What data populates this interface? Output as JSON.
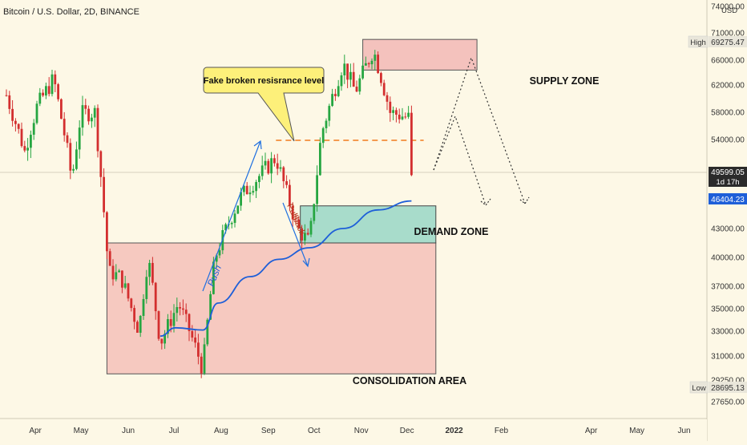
{
  "header": {
    "symbol_title": "Bitcoin / U.S. Dollar, 2D, BINANCE"
  },
  "currency": "USD",
  "price_axis": {
    "labels": [
      "74000.00",
      "71000.00",
      "66000.00",
      "62000.00",
      "58000.00",
      "54000.00",
      "43000.00",
      "40000.00",
      "37000.00",
      "35000.00",
      "33000.00",
      "31000.00",
      "29250.00",
      "27650.00"
    ],
    "high_label": "High",
    "high_value": "69275.47",
    "low_label": "Low",
    "low_value": "28695.13",
    "last_price": "49599.05",
    "countdown": "1d 17h",
    "ma_value": "46404.23"
  },
  "time_axis": {
    "labels": [
      "Apr",
      "May",
      "Jun",
      "Jul",
      "Aug",
      "Sep",
      "Oct",
      "Nov",
      "Dec",
      "2022",
      "Feb",
      "Apr",
      "May",
      "Jun"
    ]
  },
  "annotations": {
    "callout": "Fake broken resisrance level",
    "supply_zone": "SUPPLY ZONE",
    "demand_zone": "DEMAND ZONE",
    "consolidation": "CONSOLIDATION AREA",
    "push": "Push",
    "pullback": "Pullback"
  },
  "colors": {
    "background": "#fdf8e6",
    "up_candle": "#26a641",
    "down_candle": "#d32f2f",
    "ma_line": "#1e5fd8",
    "supply_fill": "#f4c2bd",
    "demand_fill": "#a8dccb",
    "consolidation_fill": "#f6c9c0",
    "callout_fill": "#fdf07a",
    "resistance_line": "#f27a1d"
  },
  "chart_data": {
    "type": "candlestick",
    "title": "Bitcoin / U.S. Dollar, 2D, BINANCE",
    "y_unit": "USD",
    "ylim": [
      26500,
      76000
    ],
    "x_range": [
      "2021-03-13",
      "2022-06-08"
    ],
    "grid": false,
    "ohlc_anchors": [
      {
        "date": "2021-03-13",
        "close": 60500
      },
      {
        "date": "2021-03-25",
        "close": 52500
      },
      {
        "date": "2021-04-02",
        "close": 58800
      },
      {
        "date": "2021-04-13",
        "close": 63000
      },
      {
        "date": "2021-04-25",
        "close": 49000
      },
      {
        "date": "2021-05-01",
        "close": 57800
      },
      {
        "date": "2021-05-10",
        "close": 58000
      },
      {
        "date": "2021-05-14",
        "close": 49500
      },
      {
        "date": "2021-05-19",
        "close": 38500
      },
      {
        "date": "2021-05-27",
        "close": 38000
      },
      {
        "date": "2021-06-08",
        "close": 33000
      },
      {
        "date": "2021-06-14",
        "close": 40000
      },
      {
        "date": "2021-06-22",
        "close": 32000
      },
      {
        "date": "2021-07-04",
        "close": 35500
      },
      {
        "date": "2021-07-20",
        "close": 30000
      },
      {
        "date": "2021-07-28",
        "close": 40000
      },
      {
        "date": "2021-08-14",
        "close": 47000
      },
      {
        "date": "2021-09-06",
        "close": 51800
      },
      {
        "date": "2021-09-20",
        "close": 43000
      },
      {
        "date": "2021-09-28",
        "close": 41500
      },
      {
        "date": "2021-10-06",
        "close": 55000
      },
      {
        "date": "2021-10-20",
        "close": 65500
      },
      {
        "date": "2021-10-28",
        "close": 61000
      },
      {
        "date": "2021-11-09",
        "close": 67800
      },
      {
        "date": "2021-11-20",
        "close": 58000
      },
      {
        "date": "2021-12-02",
        "close": 57200
      },
      {
        "date": "2021-12-04",
        "close": 49600
      }
    ],
    "moving_average": [
      {
        "date": "2021-06-22",
        "value": 32600
      },
      {
        "date": "2021-07-02",
        "value": 33300
      },
      {
        "date": "2021-07-20",
        "value": 33100
      },
      {
        "date": "2021-07-30",
        "value": 35500
      },
      {
        "date": "2021-08-20",
        "value": 38000
      },
      {
        "date": "2021-09-08",
        "value": 39800
      },
      {
        "date": "2021-09-28",
        "value": 41000
      },
      {
        "date": "2021-10-20",
        "value": 43000
      },
      {
        "date": "2021-11-12",
        "value": 45300
      },
      {
        "date": "2021-12-04",
        "value": 46404
      }
    ],
    "zones": [
      {
        "name": "SUPPLY ZONE",
        "start": "2021-11-02",
        "end": "2022-01-16",
        "low": 64400,
        "high": 69800
      },
      {
        "name": "DEMAND ZONE",
        "start": "2021-09-22",
        "end": "2021-12-20",
        "low": 41500,
        "high": 45800
      },
      {
        "name": "CONSOLIDATION AREA",
        "start": "2021-05-18",
        "end": "2021-12-20",
        "low": 29700,
        "high": 41500
      }
    ],
    "resistance_level": {
      "value": 53900,
      "start": "2021-09-06",
      "end": "2021-12-12"
    }
  }
}
